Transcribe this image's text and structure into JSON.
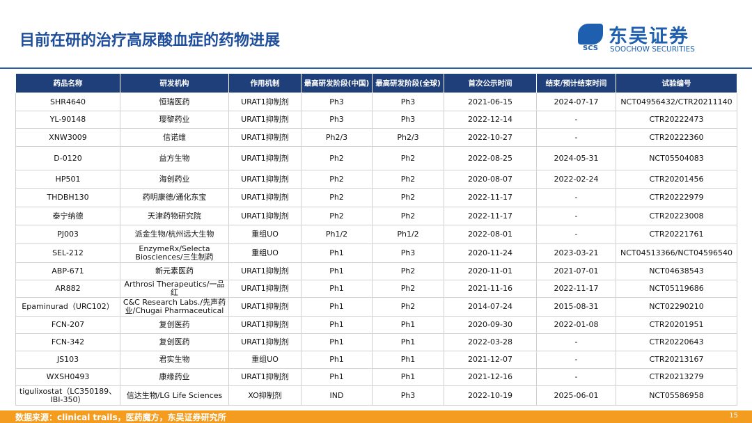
{
  "header": {
    "title": "目前在研的治疗高尿酸血症的药物进展",
    "logo_mark": "SCS",
    "logo_name": "东吴证券",
    "logo_en": "SOOCHOW SECURITIES"
  },
  "table": {
    "headers": [
      "药品名称",
      "研发机构",
      "作用机制",
      "最高研发阶段(中国)",
      "最高研发阶段(全球)",
      "首次公示时间",
      "结束/预计结束时间",
      "试验编号"
    ],
    "rows": [
      [
        "SHR4640",
        "恒瑞医药",
        "URAT1抑制剂",
        "Ph3",
        "Ph3",
        "2021-06-15",
        "2024-07-17",
        "NCT04956432/CTR20211140"
      ],
      [
        "YL-90148",
        "璎黎药业",
        "URAT1抑制剂",
        "Ph3",
        "Ph3",
        "2022-12-14",
        "-",
        "CTR20222473"
      ],
      [
        "XNW3009",
        "信诺维",
        "URAT1抑制剂",
        "Ph2/3",
        "Ph2/3",
        "2022-10-27",
        "-",
        "CTR20222360"
      ],
      [
        "D-0120",
        "益方生物",
        "URAT1抑制剂",
        "Ph2",
        "Ph2",
        "2022-08-25",
        "2024-05-31",
        "NCT05504083"
      ],
      [
        "HP501",
        "海创药业",
        "URAT1抑制剂",
        "Ph2",
        "Ph2",
        "2020-08-07",
        "2022-02-24",
        "CTR20201456"
      ],
      [
        "THDBH130",
        "药明康德/通化东宝",
        "URAT1抑制剂",
        "Ph2",
        "Ph2",
        "2022-11-17",
        "-",
        "CTR20222979"
      ],
      [
        "泰宁纳德",
        "天津药物研究院",
        "URAT1抑制剂",
        "Ph2",
        "Ph2",
        "2022-11-17",
        "-",
        "CTR20223008"
      ],
      [
        "PJ003",
        "派金生物/杭州远大生物",
        "重组UO",
        "Ph1/2",
        "Ph1/2",
        "2022-08-01",
        "-",
        "CTR20221761"
      ],
      [
        "SEL-212",
        "EnzymeRx/Selecta Biosciences/三生制药",
        "重组UO",
        "Ph1",
        "Ph3",
        "2020-11-24",
        "2023-03-21",
        "NCT04513366/NCT04596540"
      ],
      [
        "ABP-671",
        "新元素医药",
        "URAT1抑制剂",
        "Ph1",
        "Ph2",
        "2020-11-01",
        "2021-07-01",
        "NCT04638543"
      ],
      [
        "AR882",
        "Arthrosi Therapeutics/一品红",
        "URAT1抑制剂",
        "Ph1",
        "Ph2",
        "2021-11-16",
        "2022-11-17",
        "NCT05119686"
      ],
      [
        "Epaminurad（URC102）",
        "C&C Research Labs./先声药业/Chugai Pharmaceutical",
        "URAT1抑制剂",
        "Ph1",
        "Ph2",
        "2014-07-24",
        "2015-08-31",
        "NCT02290210"
      ],
      [
        "FCN-207",
        "复创医药",
        "URAT1抑制剂",
        "Ph1",
        "Ph1",
        "2020-09-30",
        "2022-01-08",
        "CTR20201951"
      ],
      [
        "FCN-342",
        "复创医药",
        "URAT1抑制剂",
        "Ph1",
        "Ph1",
        "2022-03-28",
        "-",
        "CTR20220643"
      ],
      [
        "JS103",
        "君实生物",
        "重组UO",
        "Ph1",
        "Ph1",
        "2021-12-07",
        "-",
        "CTR20213167"
      ],
      [
        "WXSH0493",
        "康缘药业",
        "URAT1抑制剂",
        "Ph1",
        "Ph1",
        "2021-12-16",
        "-",
        "CTR20213279"
      ],
      [
        "tigulixostat（LC350189、IBI-350）",
        "信达生物/LG Life Sciences",
        "XO抑制剂",
        "IND",
        "Ph3",
        "2022-10-19",
        "2025-06-01",
        "NCT05586958"
      ]
    ]
  },
  "footer": {
    "source": "数据来源：clinical trails，医药魔方，东吴证券研究所",
    "page": "15"
  }
}
